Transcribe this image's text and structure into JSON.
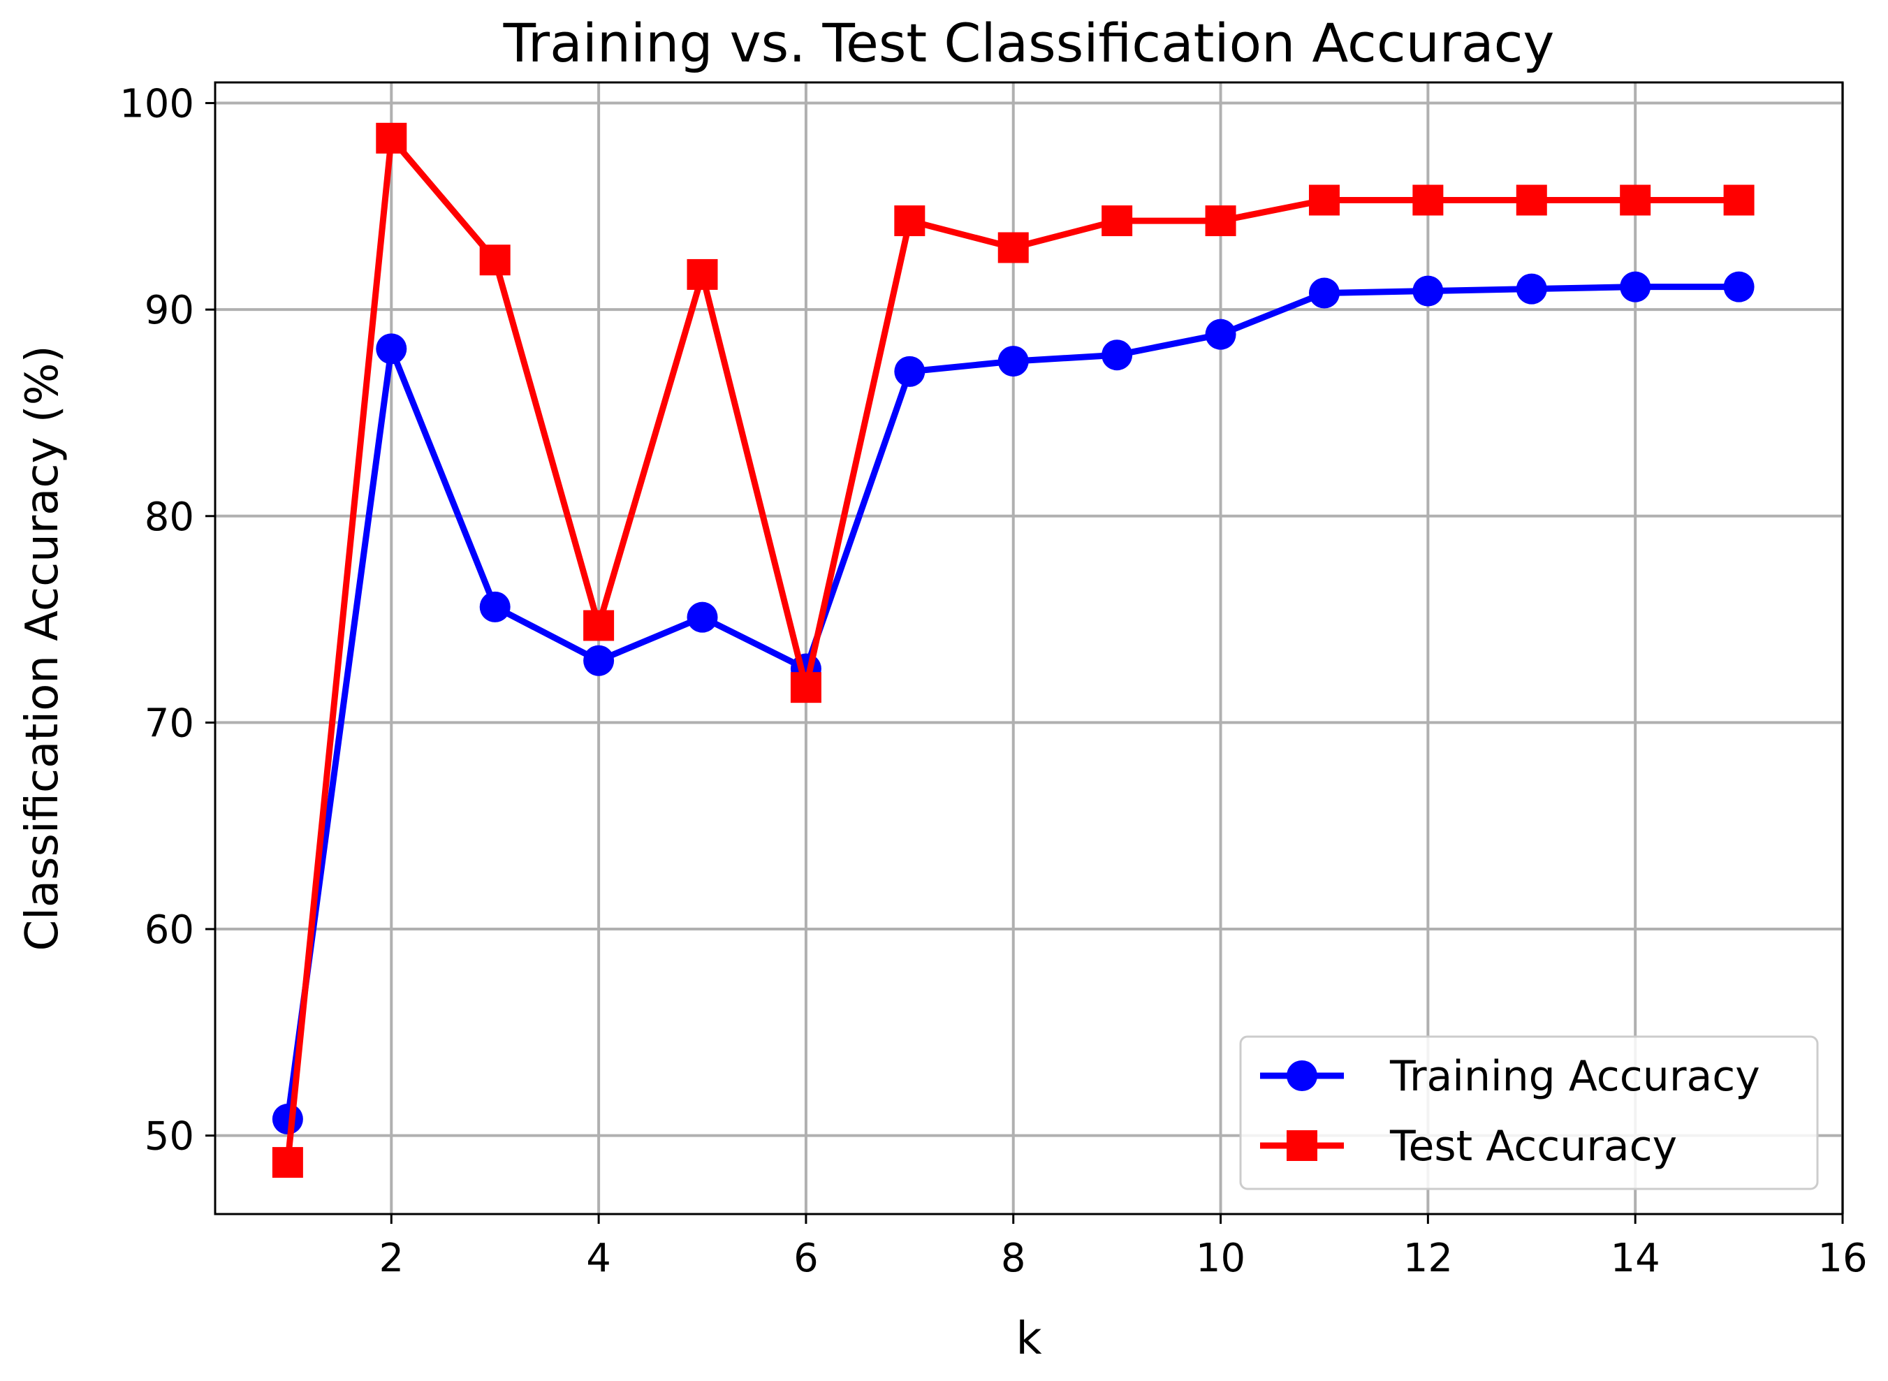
{
  "chart_data": {
    "type": "line",
    "title": "Training vs. Test Classification Accuracy",
    "xlabel": "k",
    "ylabel": "Classification Accuracy (%)",
    "xlim": [
      0.3,
      16
    ],
    "ylim": [
      46.2,
      101
    ],
    "xticks": [
      2,
      4,
      6,
      8,
      10,
      12,
      14,
      16
    ],
    "yticks": [
      50,
      60,
      70,
      80,
      90,
      100
    ],
    "x": [
      1,
      2,
      3,
      4,
      5,
      6,
      7,
      8,
      9,
      10,
      11,
      12,
      13,
      14,
      15
    ],
    "grid": true,
    "legend_position": "lower right",
    "series": [
      {
        "name": "Training Accuracy",
        "color": "#0000ff",
        "marker": "circle",
        "values": [
          50.8,
          88.1,
          75.6,
          73.0,
          75.1,
          72.6,
          87.0,
          87.5,
          87.8,
          88.8,
          90.8,
          90.9,
          91.0,
          91.1,
          91.1
        ]
      },
      {
        "name": "Test Accuracy",
        "color": "#ff0000",
        "marker": "square",
        "values": [
          48.7,
          98.3,
          92.4,
          74.7,
          91.7,
          71.7,
          94.3,
          93.0,
          94.3,
          94.3,
          95.3,
          95.3,
          95.3,
          95.3,
          95.3
        ]
      }
    ]
  }
}
